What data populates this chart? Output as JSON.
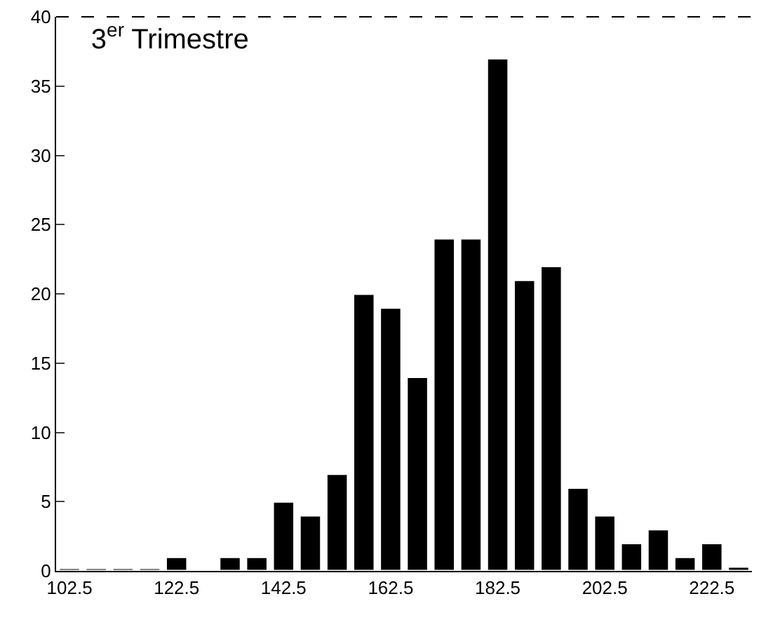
{
  "chart_data": {
    "type": "bar",
    "title": "3$^{er}$ Trimestre",
    "x": [
      102.5,
      107.5,
      112.5,
      117.5,
      122.5,
      127.5,
      132.5,
      137.5,
      142.5,
      147.5,
      152.5,
      157.5,
      162.5,
      167.5,
      172.5,
      177.5,
      182.5,
      187.5,
      192.5,
      197.5,
      202.5,
      207.5,
      212.5,
      217.5,
      222.5,
      227.5
    ],
    "values": [
      0.2,
      0.2,
      0.2,
      0.2,
      1,
      0.1,
      1,
      1,
      5,
      4,
      7,
      20,
      19,
      14,
      24,
      24,
      37,
      21,
      22,
      6,
      4,
      2,
      3,
      1,
      2,
      0.3
    ],
    "color": "#000000",
    "xlim": [
      100,
      230
    ],
    "xticks": [
      102.5,
      122.5,
      142.5,
      162.5,
      182.5,
      202.5,
      222.5
    ],
    "ylim": [
      0,
      40
    ],
    "yticks": [
      0,
      5,
      10,
      15,
      20,
      25,
      30,
      35,
      40
    ]
  }
}
